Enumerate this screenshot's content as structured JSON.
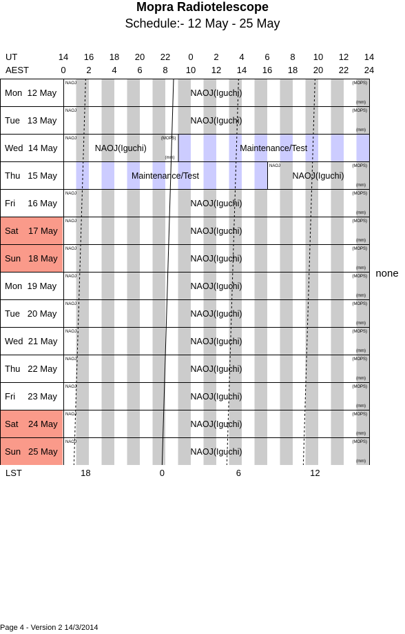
{
  "header": {
    "title": "Mopra Radiotelescope",
    "subtitle": "Schedule:- 12 May - 25 May"
  },
  "axes": {
    "ut_label": "UT",
    "aest_label": "AEST",
    "lst_label": "LST",
    "ut_ticks": [
      "14",
      "16",
      "18",
      "20",
      "22",
      "0",
      "2",
      "4",
      "6",
      "8",
      "10",
      "12",
      "14"
    ],
    "aest_ticks": [
      "0",
      "2",
      "4",
      "6",
      "8",
      "10",
      "12",
      "14",
      "16",
      "18",
      "20",
      "22",
      "24"
    ],
    "lst_ticks": [
      "18",
      "0",
      "6",
      "12"
    ],
    "lst_tick_aest_hours": [
      1.75,
      7.75,
      13.75,
      19.75
    ]
  },
  "colors": {
    "weekend": "#fa9a8a",
    "maintenance_stripe": "#ccccff",
    "normal_stripe": "#cccccc"
  },
  "side_note": "none",
  "days": [
    {
      "label": "Mon  12 May",
      "weekend": false
    },
    {
      "label": "Tue   13 May",
      "weekend": false
    },
    {
      "label": "Wed  14 May",
      "weekend": false
    },
    {
      "label": "Thu   15 May",
      "weekend": false
    },
    {
      "label": "Fri     16 May",
      "weekend": false
    },
    {
      "label": "Sat    17 May",
      "weekend": true
    },
    {
      "label": "Sun   18 May",
      "weekend": true
    },
    {
      "label": "Mon  19 May",
      "weekend": false
    },
    {
      "label": "Tue   20 May",
      "weekend": false
    },
    {
      "label": "Wed  21 May",
      "weekend": false
    },
    {
      "label": "Thu   22 May",
      "weekend": false
    },
    {
      "label": "Fri     23 May",
      "weekend": false
    },
    {
      "label": "Sat    24 May",
      "weekend": true
    },
    {
      "label": "Sun   25 May",
      "weekend": true
    }
  ],
  "blocks": [
    {
      "day": 0,
      "start": 0,
      "end": 24,
      "text": "NAOJ(Iguchi)",
      "tl": "NAOJ",
      "tr": "(MOPS)",
      "br": "(mm)",
      "type": "normal"
    },
    {
      "day": 1,
      "start": 0,
      "end": 24,
      "text": "NAOJ(Iguchi)",
      "tl": "NAOJ",
      "tr": "(MOPS)",
      "br": "(mm)",
      "type": "normal"
    },
    {
      "day": 2,
      "start": 0,
      "end": 9,
      "text": "NAOJ(Iguchi)",
      "tl": "NAOJ",
      "tr": "(MOPS)",
      "br": "(mm)",
      "type": "normal"
    },
    {
      "day": 2,
      "start": 9,
      "end": 24,
      "text": "Maintenance/Test",
      "tl": "",
      "tr": "",
      "br": "",
      "type": "maint"
    },
    {
      "day": 3,
      "start": 0,
      "end": 16,
      "text": "Maintenance/Test",
      "tl": "",
      "tr": "",
      "br": "",
      "type": "maint"
    },
    {
      "day": 3,
      "start": 16,
      "end": 24,
      "text": "NAOJ(Iguchi)",
      "tl": "NAOJ",
      "tr": "(MOPS)",
      "br": "(mm)",
      "type": "normal"
    },
    {
      "day": 4,
      "start": 0,
      "end": 24,
      "text": "NAOJ(Iguchi)",
      "tl": "NAOJ",
      "tr": "(MOPS)",
      "br": "(mm)",
      "type": "normal"
    },
    {
      "day": 5,
      "start": 0,
      "end": 24,
      "text": "NAOJ(Iguchi)",
      "tl": "NAOJ",
      "tr": "(MOPS)",
      "br": "(mm)",
      "type": "normal"
    },
    {
      "day": 6,
      "start": 0,
      "end": 24,
      "text": "NAOJ(Iguchi)",
      "tl": "NAOJ",
      "tr": "(MOPS)",
      "br": "(mm)",
      "type": "normal"
    },
    {
      "day": 7,
      "start": 0,
      "end": 24,
      "text": "NAOJ(Iguchi)",
      "tl": "NAOJ",
      "tr": "(MOPS)",
      "br": "(mm)",
      "type": "normal"
    },
    {
      "day": 8,
      "start": 0,
      "end": 24,
      "text": "NAOJ(Iguchi)",
      "tl": "NAOJ",
      "tr": "(MOPS)",
      "br": "(mm)",
      "type": "normal"
    },
    {
      "day": 9,
      "start": 0,
      "end": 24,
      "text": "NAOJ(Iguchi)",
      "tl": "NAOJ",
      "tr": "(MOPS)",
      "br": "(mm)",
      "type": "normal"
    },
    {
      "day": 10,
      "start": 0,
      "end": 24,
      "text": "NAOJ(Iguchi)",
      "tl": "NAOJ",
      "tr": "(MOPS)",
      "br": "(mm)",
      "type": "normal"
    },
    {
      "day": 11,
      "start": 0,
      "end": 24,
      "text": "NAOJ(Iguchi)",
      "tl": "NAOJ",
      "tr": "(MOPS)",
      "br": "(mm)",
      "type": "normal"
    },
    {
      "day": 12,
      "start": 0,
      "end": 24,
      "text": "NAOJ(Iguchi)",
      "tl": "NAOJ",
      "tr": "(MOPS)",
      "br": "(mm)",
      "type": "normal"
    },
    {
      "day": 13,
      "start": 0,
      "end": 24,
      "text": "NAOJ(Iguchi)",
      "tl": "NAOJ",
      "tr": "(MOPS)",
      "br": "(mm)",
      "type": "normal"
    }
  ],
  "footer": "Page 4 - Version 2  14/3/2014"
}
